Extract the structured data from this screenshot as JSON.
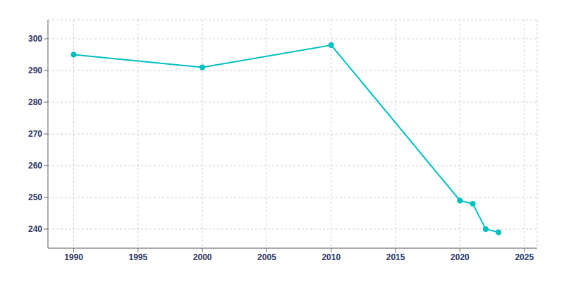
{
  "chart_data": {
    "type": "line",
    "x": [
      1990,
      2000,
      2010,
      2020,
      2021,
      2022,
      2023
    ],
    "values": [
      295,
      291,
      298,
      249,
      248,
      240,
      239
    ],
    "color": "#00C0C0",
    "xlim": [
      1988,
      2026
    ],
    "ylim": [
      234,
      306
    ],
    "xticks": [
      1990,
      1995,
      2000,
      2005,
      2010,
      2015,
      2020,
      2025
    ],
    "yticks": [
      240,
      250,
      260,
      270,
      280,
      290,
      300
    ],
    "grid": true,
    "marker": "circle"
  }
}
